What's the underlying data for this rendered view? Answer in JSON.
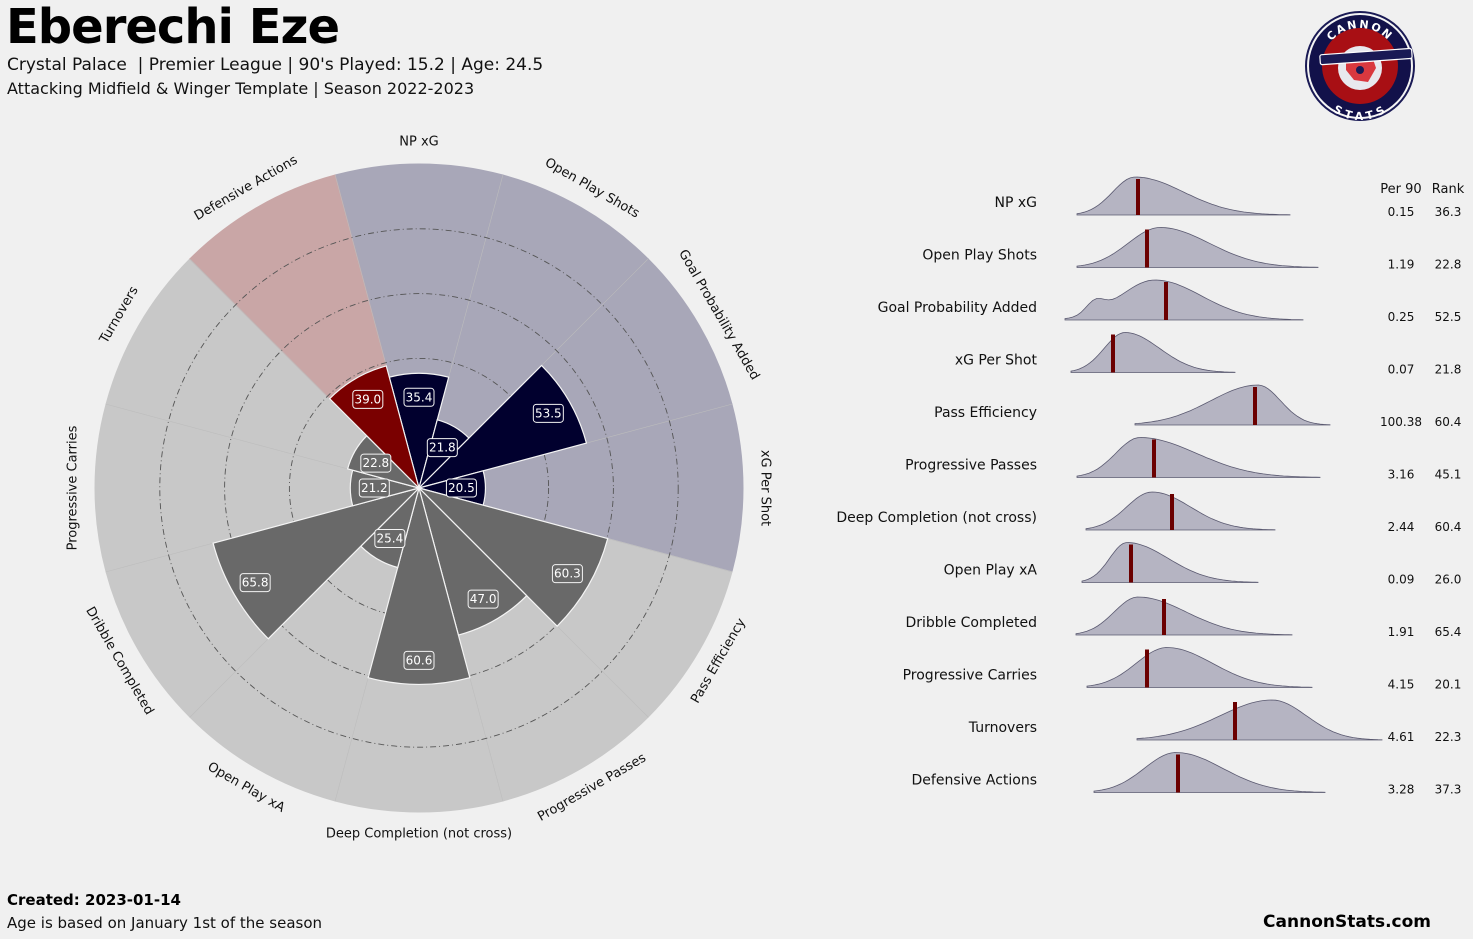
{
  "header": {
    "title": "Eberechi Eze",
    "subtitle1": "Crystal Palace  | Premier League | 90's Played: 15.2 | Age: 24.5",
    "subtitle2": "Attacking Midfield & Winger Template | Season 2022-2023"
  },
  "footer": {
    "created": "Created: 2023-01-14",
    "note": "Age is based on January 1st of the season",
    "site": "CannonStats.com"
  },
  "logo": {
    "top_text": "CANNON",
    "bottom_text": "STATS"
  },
  "colors": {
    "background": "#f0f0f0",
    "attack_bg": "#a8a7b8",
    "attack_bar": "#01002e",
    "defense_bg": "#c9a6a6",
    "defense_bar": "#7a0000",
    "possession_bg": "#c8c8c8",
    "possession_bar": "#696969",
    "dist_fill": "#b5b4c2",
    "dist_line": "#5a5970",
    "marker": "#6b0000"
  },
  "chart_data": [
    {
      "type": "radar",
      "ylim": [
        0,
        100
      ],
      "categories": [
        "NP xG",
        "Open Play Shots",
        "Goal Probability Added",
        "xG Per Shot",
        "Pass Efficiency",
        "Progressive Passes",
        "Deep Completion (not cross)",
        "Open Play xA",
        "Dribble Completed",
        "Progressive Carries",
        "Turnovers",
        "Defensive Actions"
      ],
      "values": [
        35.4,
        21.8,
        53.5,
        20.5,
        60.3,
        47.0,
        60.6,
        25.4,
        65.8,
        21.2,
        22.8,
        39.0
      ],
      "value_labels": [
        "35.4",
        "21.8",
        "53.5",
        "20.5",
        "60.3",
        "47.0",
        "60.6",
        "25.4",
        "65.8",
        "21.2",
        "22.8",
        "39.0"
      ],
      "groups": [
        "attack",
        "attack",
        "attack",
        "attack",
        "possession",
        "possession",
        "possession",
        "possession",
        "possession",
        "possession",
        "possession",
        "defense"
      ]
    },
    {
      "type": "area",
      "columns": [
        "Per 90",
        "Rank"
      ],
      "metrics": [
        {
          "label": "NP xG",
          "per90": "0.15",
          "rank": "36.3"
        },
        {
          "label": "Open Play Shots",
          "per90": "1.19",
          "rank": "22.8"
        },
        {
          "label": "Goal Probability Added",
          "per90": "0.25",
          "rank": "52.5"
        },
        {
          "label": "xG Per Shot",
          "per90": "0.07",
          "rank": "21.8"
        },
        {
          "label": "Pass Efficiency",
          "per90": "100.38",
          "rank": "60.4"
        },
        {
          "label": "Progressive Passes",
          "per90": "3.16",
          "rank": "45.1"
        },
        {
          "label": "Deep Completion (not cross)",
          "per90": "2.44",
          "rank": "60.4"
        },
        {
          "label": "Open Play xA",
          "per90": "0.09",
          "rank": "26.0"
        },
        {
          "label": "Dribble Completed",
          "per90": "1.91",
          "rank": "65.4"
        },
        {
          "label": "Progressive Carries",
          "per90": "4.15",
          "rank": "20.1"
        },
        {
          "label": "Turnovers",
          "per90": "4.61",
          "rank": "22.3"
        },
        {
          "label": "Defensive Actions",
          "per90": "3.28",
          "rank": "37.3"
        }
      ]
    }
  ]
}
